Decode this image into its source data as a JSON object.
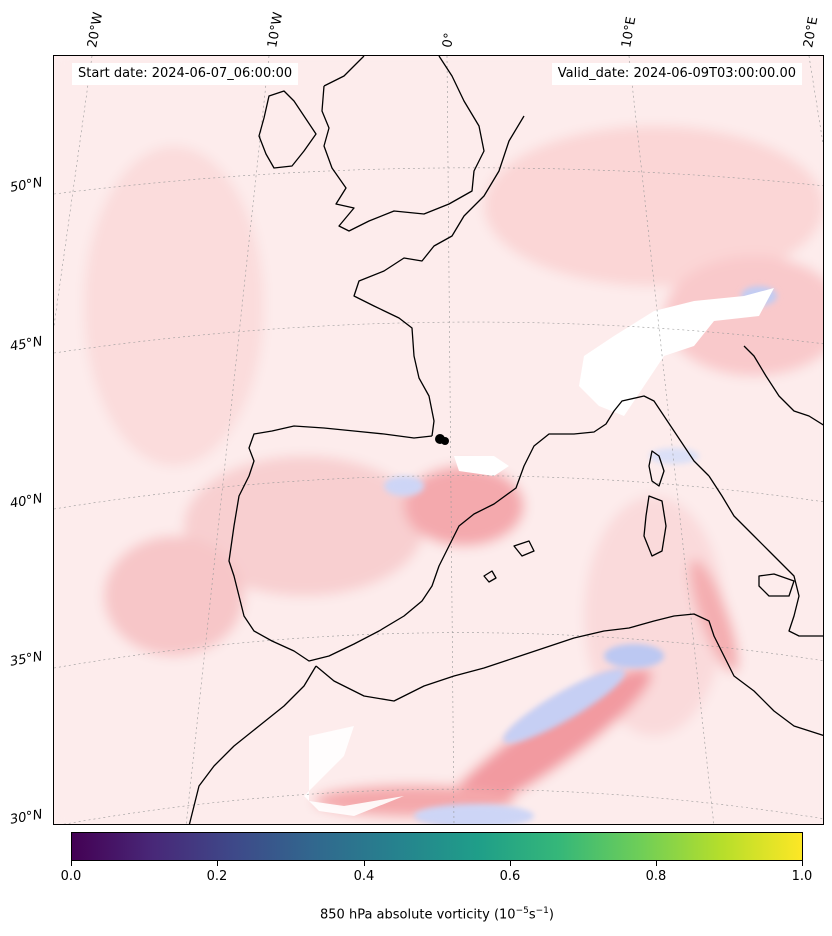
{
  "header": {
    "start_date": "Start date: 2024-06-07_06:00:00",
    "valid_date": "Valid_date: 2024-06-09T03:00:00.00"
  },
  "axes": {
    "longitude_labels": [
      "20°W",
      "10°W",
      "0°",
      "10°E",
      "20°E"
    ],
    "latitude_labels": [
      "50°N",
      "45°N",
      "40°N",
      "35°N",
      "30°N"
    ]
  },
  "colorbar": {
    "ticks": [
      "0.0",
      "0.2",
      "0.4",
      "0.6",
      "0.8",
      "1.0"
    ],
    "title": "850 hPa absolute vorticity (10",
    "title_sup1": "−5",
    "title_mid": "s",
    "title_sup2": "−1",
    "title_end": ")",
    "colormap": "viridis"
  },
  "colors": {
    "positive_vorticity": "#f4a3a8",
    "negative_vorticity": "#b8c4f0",
    "background_field": "#fdeeee",
    "coastline": "#000000"
  }
}
